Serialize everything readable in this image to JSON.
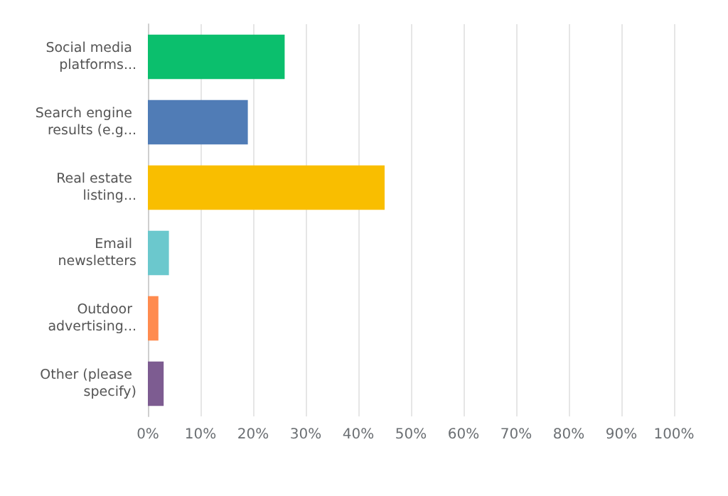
{
  "chart_data": {
    "type": "bar",
    "orientation": "horizontal",
    "categories": [
      "Social media platforms...",
      "Search engine results (e.g...",
      "Real estate listing...",
      "Email newsletters",
      "Outdoor advertising...",
      "Other (please specify)"
    ],
    "values": [
      26,
      19,
      45,
      4,
      2,
      3
    ],
    "colors": [
      "#0bbf6d",
      "#507cb6",
      "#f9be00",
      "#6bc8cd",
      "#ff8b4f",
      "#7d5c91"
    ],
    "xlim": [
      0,
      100
    ],
    "xticks": [
      {
        "value": 0,
        "label": "0%"
      },
      {
        "value": 10,
        "label": "10%"
      },
      {
        "value": 20,
        "label": "20%"
      },
      {
        "value": 30,
        "label": "30%"
      },
      {
        "value": 40,
        "label": "40%"
      },
      {
        "value": 50,
        "label": "50%"
      },
      {
        "value": 60,
        "label": "60%"
      },
      {
        "value": 70,
        "label": "70%"
      },
      {
        "value": 80,
        "label": "80%"
      },
      {
        "value": 90,
        "label": "90%"
      },
      {
        "value": 100,
        "label": "100%"
      }
    ],
    "grid": "x"
  }
}
